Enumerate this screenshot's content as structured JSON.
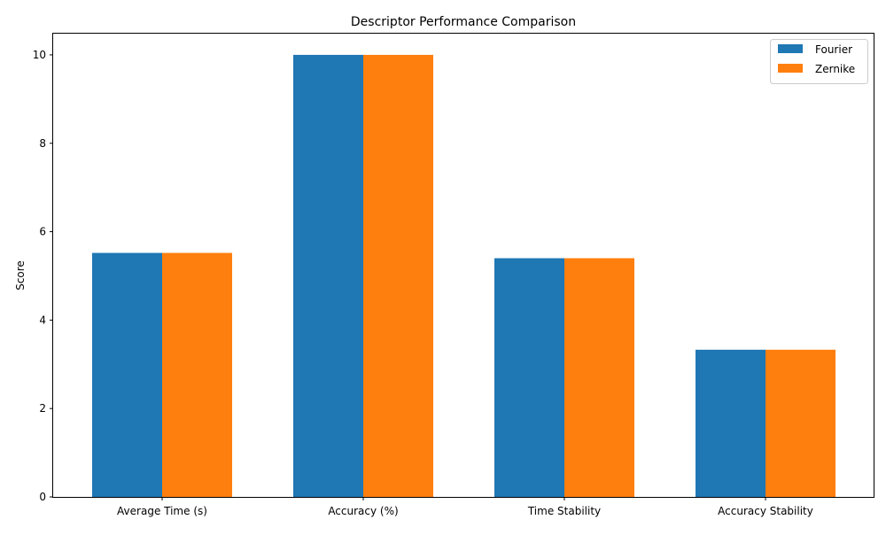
{
  "chart_data": {
    "type": "bar",
    "title": "Descriptor Performance Comparison",
    "xlabel": "",
    "ylabel": "Score",
    "categories": [
      "Average Time (s)",
      "Accuracy (%)",
      "Time Stability",
      "Accuracy Stability"
    ],
    "series": [
      {
        "name": "Fourier",
        "color": "#1f77b4",
        "values": [
          5.52,
          10.0,
          5.4,
          3.33
        ]
      },
      {
        "name": "Zernike",
        "color": "#ff7f0e",
        "values": [
          5.52,
          10.0,
          5.4,
          3.33
        ]
      }
    ],
    "ylim": [
      0,
      10.5
    ],
    "yticks": [
      0,
      2,
      4,
      6,
      8,
      10
    ],
    "grid": false,
    "legend_position": "top-right"
  }
}
